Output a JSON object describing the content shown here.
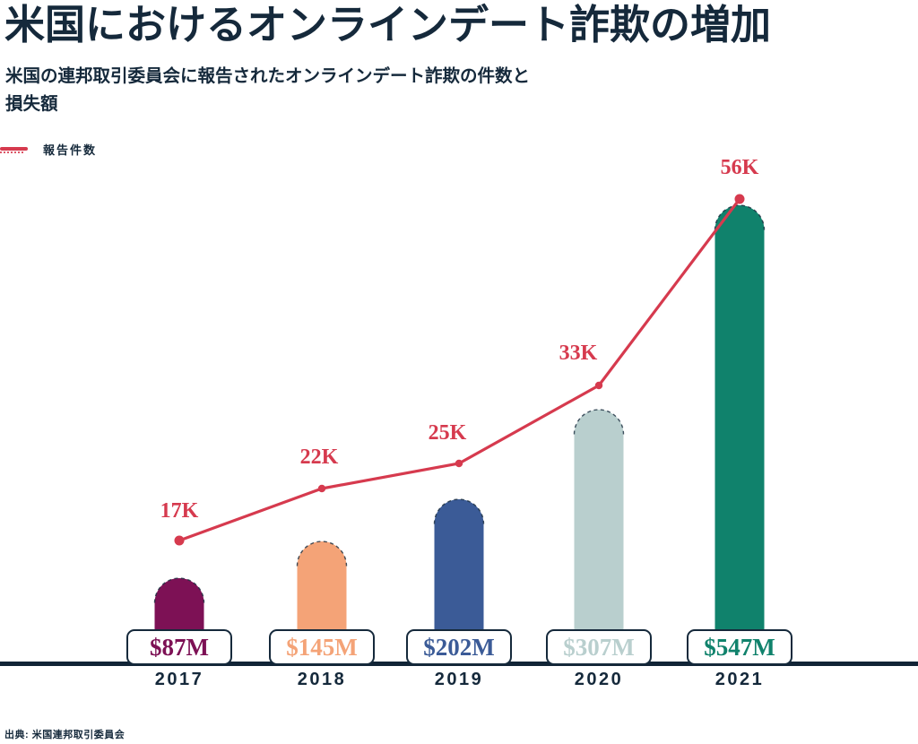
{
  "header": {
    "title": "米国におけるオンラインデート詐欺の増加",
    "subtitle_line1": "米国の連邦取引委員会に報告されたオンラインデート詐欺の件数と",
    "subtitle_line2": "損失額"
  },
  "legend": {
    "items": [
      {
        "label": "報告件数",
        "color": "#d63a4e",
        "type": "line"
      }
    ]
  },
  "source": "出典: 米国連邦取引委員会",
  "colors": {
    "text_navy": "#15293b",
    "line_red": "#d63a4e",
    "baseline": "#112436",
    "background": "#ffffff"
  },
  "chart_data": {
    "type": "bar",
    "combo": "bar-with-line-overlay",
    "title": "米国におけるオンラインデート詐欺の増加",
    "subtitle": "米国の連邦取引委員会に報告されたオンラインデート詐欺の件数と損失額",
    "categories": [
      "2017",
      "2018",
      "2019",
      "2020",
      "2021"
    ],
    "series": [
      {
        "name": "損失額",
        "type": "bar",
        "unit": "USD millions",
        "values": [
          87,
          145,
          202,
          307,
          547
        ],
        "labels": [
          "$87M",
          "$145M",
          "$202M",
          "$307M",
          "$547M"
        ],
        "colors": [
          "#7d1155",
          "#f4a377",
          "#3b5b97",
          "#b9cfce",
          "#10826c"
        ]
      },
      {
        "name": "報告件数",
        "type": "line",
        "unit": "thousands of reports",
        "values": [
          17,
          22,
          25,
          33,
          56
        ],
        "labels": [
          "17K",
          "22K",
          "25K",
          "33K",
          "56K"
        ],
        "color": "#d63a4e"
      }
    ],
    "legend_position": "top-left",
    "grid": false,
    "axes": "baseline-only",
    "value_labels_on": true
  }
}
